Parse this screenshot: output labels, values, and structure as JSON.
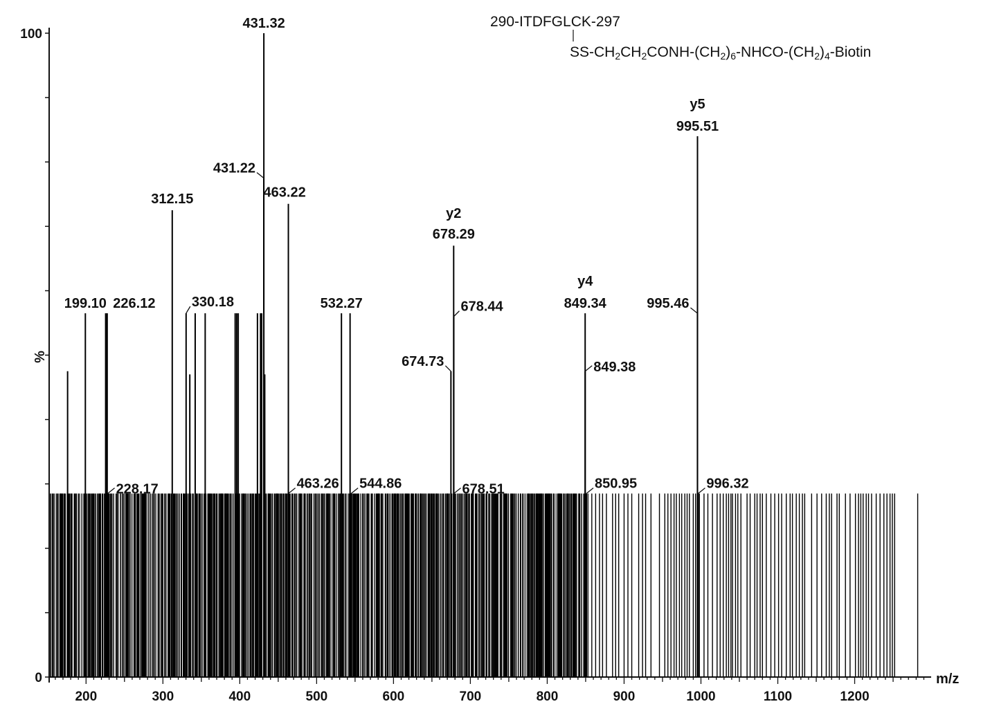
{
  "chart_data": {
    "type": "bar",
    "subtype": "mass-spectrum",
    "xlabel": "m/z",
    "ylabel": "%",
    "xlim": [
      152,
      1295
    ],
    "ylim": [
      0,
      100
    ],
    "x_ticks": [
      200,
      300,
      400,
      500,
      600,
      700,
      800,
      900,
      1000,
      1100,
      1200
    ],
    "y_ticks": [
      0,
      100
    ],
    "annotation": {
      "peptide": "290-ITDFGLCK-297",
      "modification": [
        {
          "t": "SS-CH",
          "sub": false
        },
        {
          "t": "2",
          "sub": true
        },
        {
          "t": "CH",
          "sub": false
        },
        {
          "t": "2",
          "sub": true
        },
        {
          "t": "CONH-(CH",
          "sub": false
        },
        {
          "t": "2",
          "sub": true
        },
        {
          "t": ")",
          "sub": false
        },
        {
          "t": "6",
          "sub": true
        },
        {
          "t": "-NHCO-(CH",
          "sub": false
        },
        {
          "t": "2",
          "sub": true
        },
        {
          "t": ")",
          "sub": false
        },
        {
          "t": "4",
          "sub": true
        },
        {
          "t": "-Biotin",
          "sub": false
        }
      ]
    },
    "labeled_peaks": [
      {
        "mz": 431.32,
        "intensity": 100,
        "label": "431.32"
      },
      {
        "mz": 995.51,
        "intensity": 84,
        "label": "995.51",
        "ion": "y5"
      },
      {
        "mz": 431.22,
        "intensity": 77.5,
        "label": "431.22"
      },
      {
        "mz": 312.15,
        "intensity": 72.5,
        "label": "312.15"
      },
      {
        "mz": 463.22,
        "intensity": 73.5,
        "label": "463.22"
      },
      {
        "mz": 678.29,
        "intensity": 67,
        "label": "678.29",
        "ion": "y2"
      },
      {
        "mz": 678.44,
        "intensity": 56,
        "label": "678.44"
      },
      {
        "mz": 199.1,
        "intensity": 56.5,
        "label": "199.10"
      },
      {
        "mz": 226.12,
        "intensity": 56.5,
        "label": "226.12"
      },
      {
        "mz": 330.18,
        "intensity": 56.5,
        "label": "330.18"
      },
      {
        "mz": 532.27,
        "intensity": 56.5,
        "label": "532.27"
      },
      {
        "mz": 849.34,
        "intensity": 56.5,
        "label": "849.34",
        "ion": "y4"
      },
      {
        "mz": 995.46,
        "intensity": 56.5,
        "label": "995.46"
      },
      {
        "mz": 674.73,
        "intensity": 47.5,
        "label": "674.73"
      },
      {
        "mz": 849.38,
        "intensity": 47.5,
        "label": "849.38"
      },
      {
        "mz": 228.17,
        "intensity": 28.5,
        "label": "228.17"
      },
      {
        "mz": 463.26,
        "intensity": 28.5,
        "label": "463.26"
      },
      {
        "mz": 544.86,
        "intensity": 28.5,
        "label": "544.86"
      },
      {
        "mz": 678.51,
        "intensity": 28.5,
        "label": "678.51"
      },
      {
        "mz": 850.95,
        "intensity": 28.5,
        "label": "850.95"
      },
      {
        "mz": 996.32,
        "intensity": 28.5,
        "label": "996.32"
      }
    ],
    "other_peaks": [
      {
        "mz": 176,
        "intensity": 47.5
      },
      {
        "mz": 225.5,
        "intensity": 56.5
      },
      {
        "mz": 227.5,
        "intensity": 56.5
      },
      {
        "mz": 335,
        "intensity": 47
      },
      {
        "mz": 342,
        "intensity": 56.5
      },
      {
        "mz": 355,
        "intensity": 56.5
      },
      {
        "mz": 394,
        "intensity": 56.5
      },
      {
        "mz": 396,
        "intensity": 56.5
      },
      {
        "mz": 398,
        "intensity": 56.5
      },
      {
        "mz": 423,
        "intensity": 56.5
      },
      {
        "mz": 427,
        "intensity": 56.5
      },
      {
        "mz": 428.5,
        "intensity": 56.5
      },
      {
        "mz": 432.5,
        "intensity": 47
      },
      {
        "mz": 543.5,
        "intensity": 56.5
      }
    ],
    "baseline_peaks": {
      "intensity": 28.5,
      "dense_region": [
        154,
        850
      ],
      "sparse_mz": [
        853,
        858,
        863,
        868,
        872,
        877,
        885,
        889,
        893,
        900,
        905,
        910,
        919,
        924,
        928,
        935,
        946,
        953,
        957,
        961,
        965,
        968,
        972,
        975,
        979,
        982,
        985,
        990,
        993,
        998,
        1004,
        1009,
        1015,
        1021,
        1025,
        1029,
        1033,
        1036,
        1039,
        1041,
        1045,
        1048,
        1052,
        1060,
        1064,
        1070,
        1073,
        1077,
        1080,
        1085,
        1091,
        1096,
        1101,
        1105,
        1111,
        1116,
        1119,
        1124,
        1128,
        1132,
        1135,
        1144,
        1151,
        1157,
        1163,
        1167,
        1170,
        1177,
        1180,
        1188,
        1194,
        1201,
        1205,
        1208,
        1211,
        1215,
        1218,
        1222,
        1228,
        1233,
        1238,
        1242,
        1246,
        1249,
        1252,
        1282
      ]
    }
  }
}
